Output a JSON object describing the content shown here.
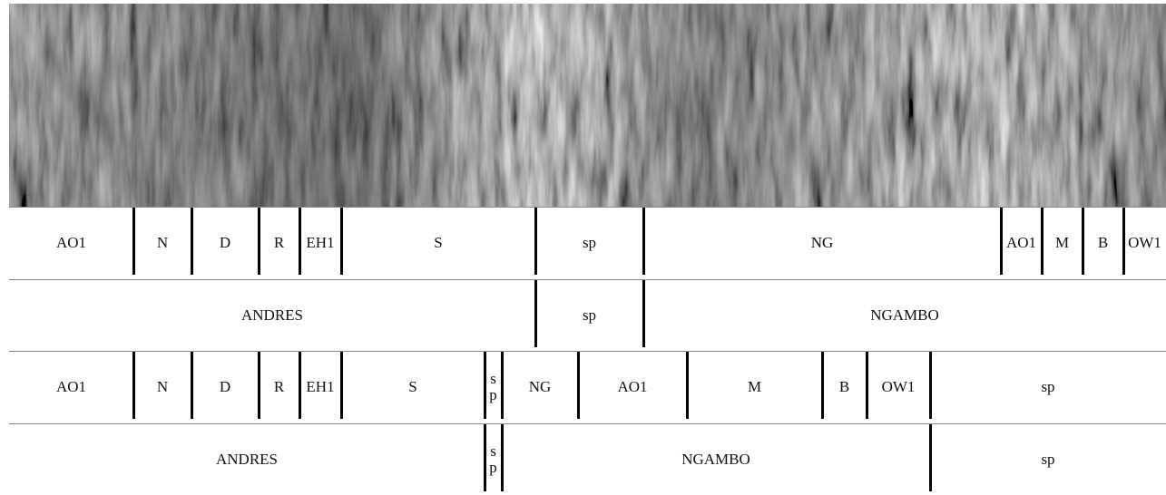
{
  "tiers": [
    {
      "segments": [
        "AO1",
        "N",
        "D",
        "R",
        "EH1",
        "S",
        "sp",
        "NG",
        "AO1",
        "M",
        "B",
        "OW1"
      ]
    },
    {
      "segments": [
        "ANDRES",
        "sp",
        "NGAMBO"
      ]
    },
    {
      "segments": [
        "AO1",
        "N",
        "D",
        "R",
        "EH1",
        "S",
        "sp",
        "NG",
        "AO1",
        "M",
        "B",
        "OW1",
        "sp"
      ]
    },
    {
      "segments": [
        "ANDRES",
        "sp",
        "NGAMBO",
        "sp"
      ]
    }
  ]
}
